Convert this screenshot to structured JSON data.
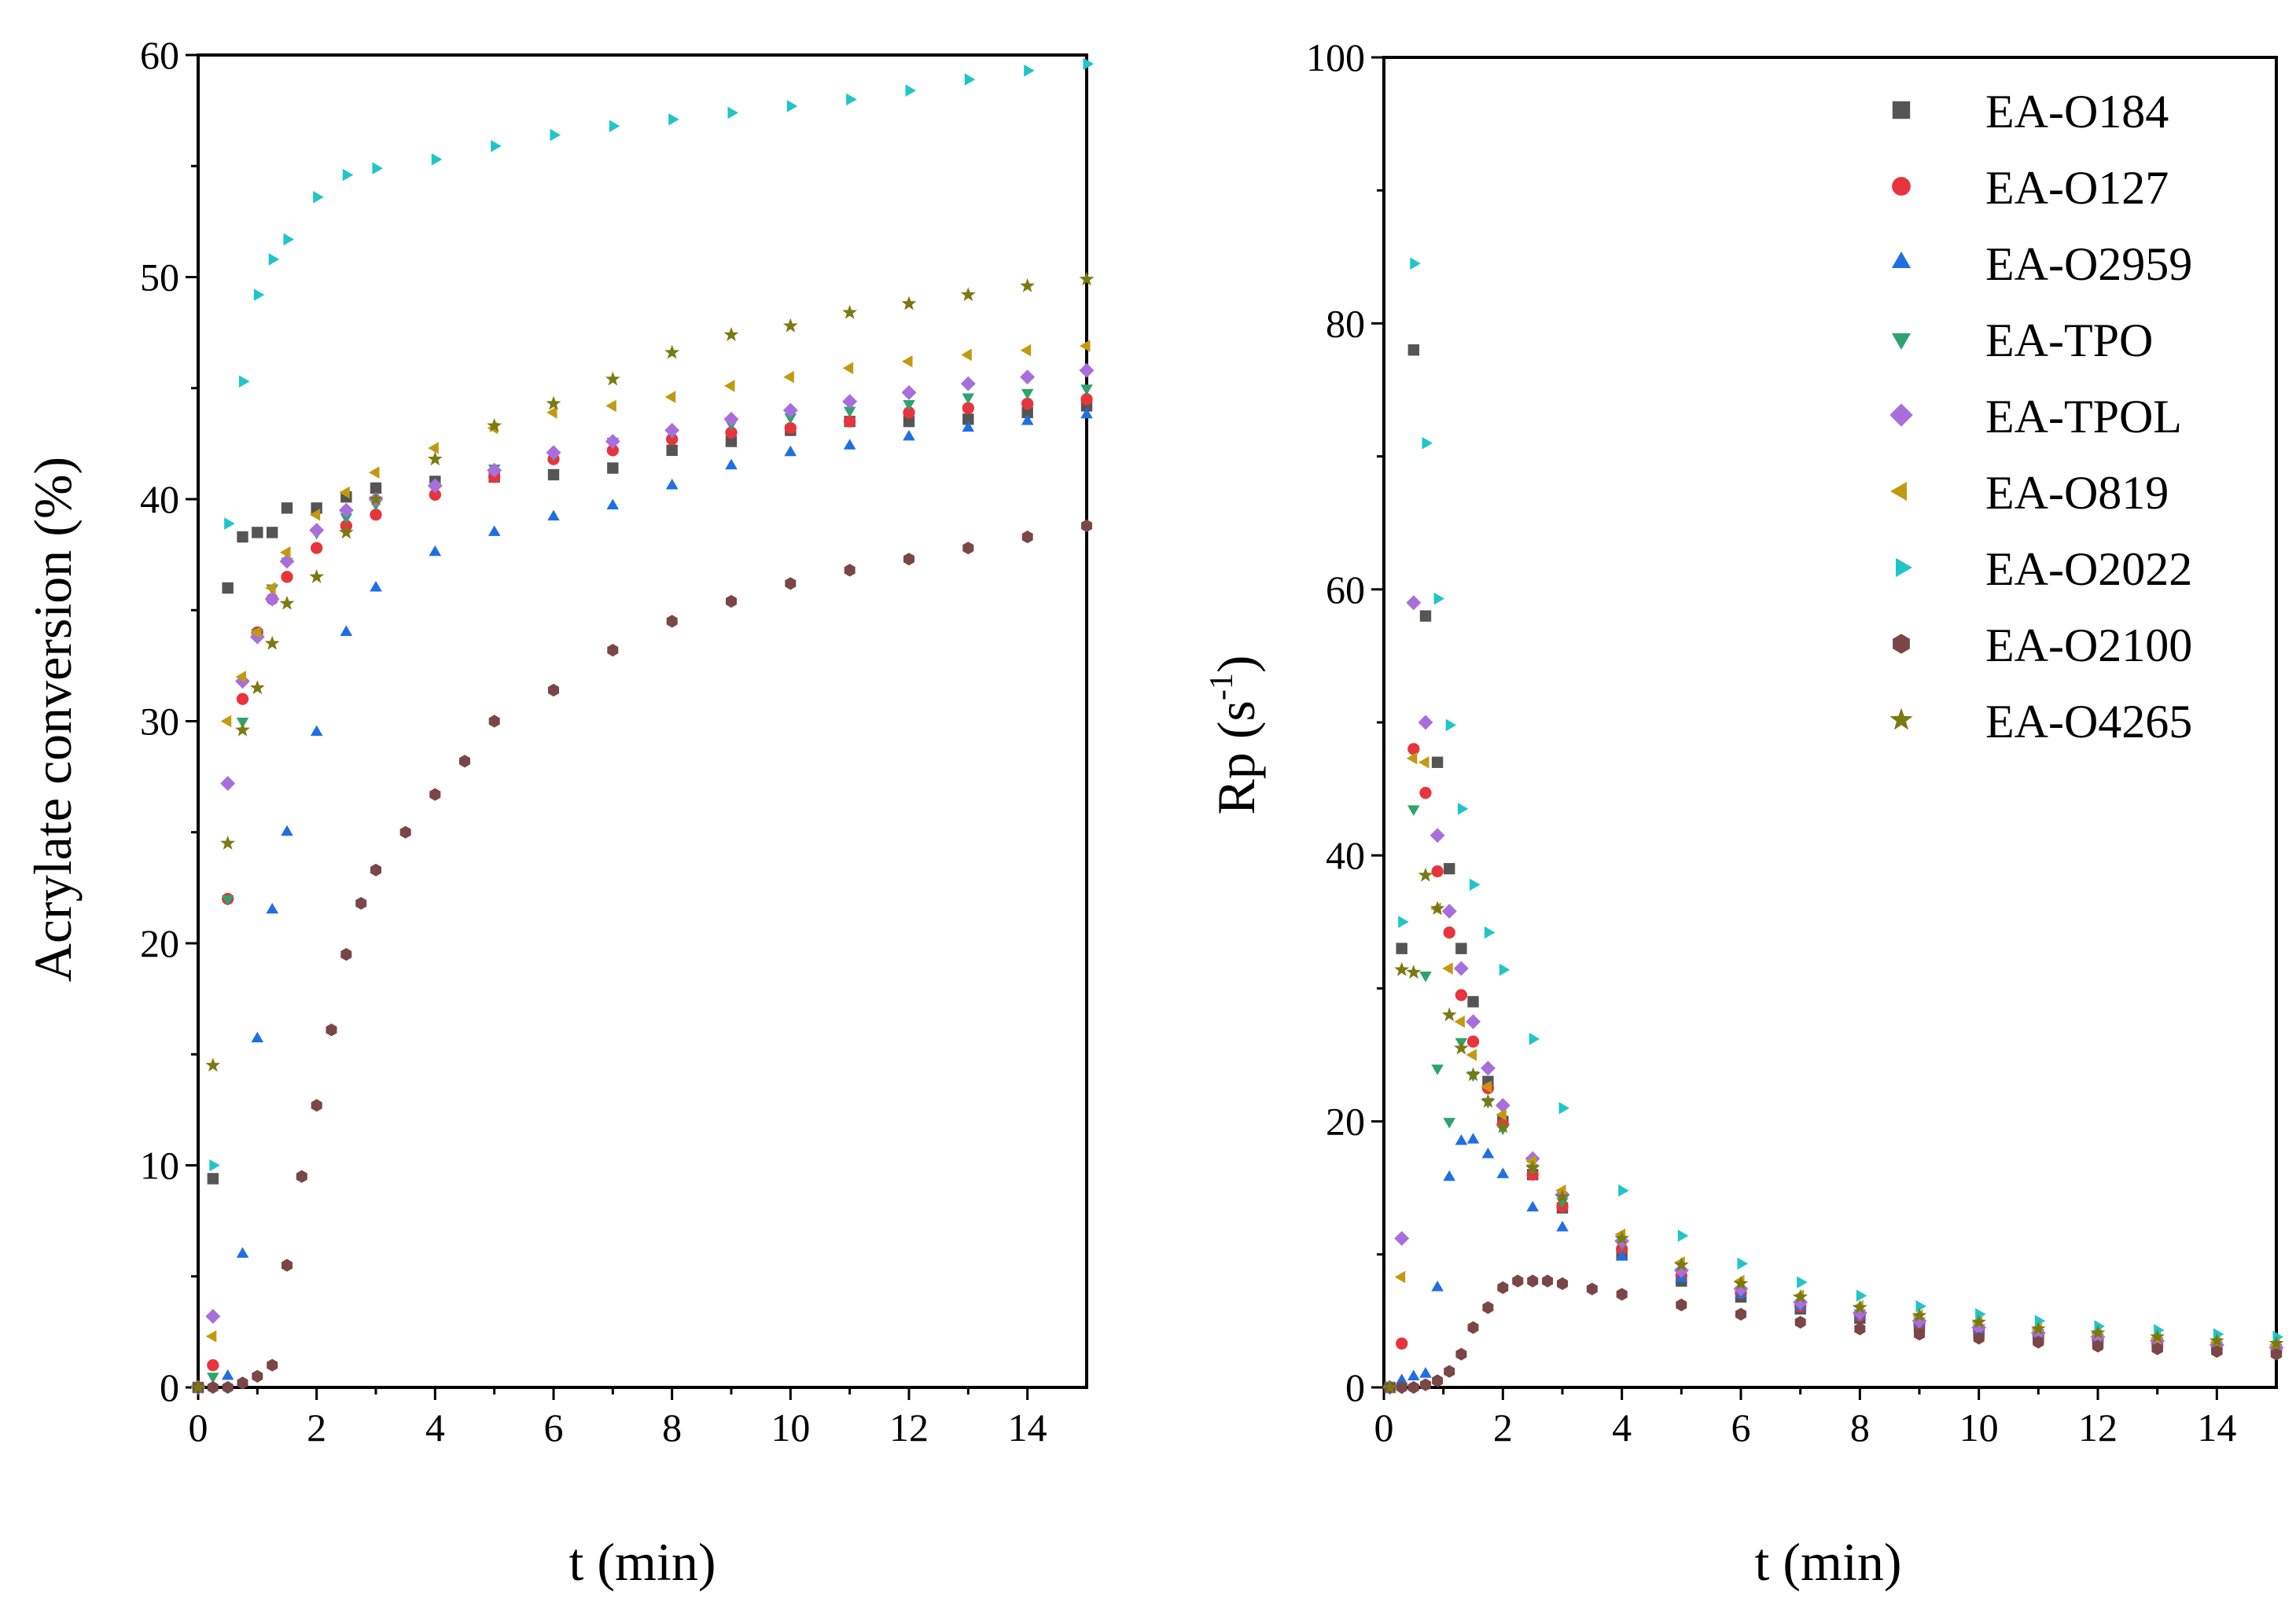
{
  "chart_data": [
    {
      "type": "scatter",
      "xlabel": "t (min)",
      "ylabel": "Acrylate conversion (%)",
      "xlim": [
        0,
        15
      ],
      "ylim": [
        0,
        60
      ],
      "x_ticks": [
        "0",
        "2",
        "4",
        "6",
        "8",
        "10",
        "12",
        "14"
      ],
      "y_ticks": [
        "0",
        "10",
        "20",
        "30",
        "40",
        "50",
        "60"
      ],
      "series": [
        {
          "color": "#555555",
          "marker": "square",
          "x": [
            0,
            0.25,
            0.5,
            0.75,
            1,
            1.25,
            1.5,
            2,
            2.5,
            3,
            4,
            5,
            6,
            7,
            8,
            9,
            10,
            11,
            12,
            13,
            14,
            15
          ],
          "y": [
            0,
            9.4,
            36,
            38.3,
            38.5,
            38.5,
            39.6,
            39.6,
            40.1,
            40.5,
            40.8,
            41,
            41.1,
            41.4,
            42.2,
            42.6,
            43.1,
            43.5,
            43.5,
            43.6,
            43.9,
            44.2
          ]
        },
        {
          "color": "#e8343c",
          "marker": "circle",
          "x": [
            0,
            0.25,
            0.5,
            0.75,
            1,
            1.25,
            1.5,
            2,
            2.5,
            3,
            4,
            5,
            6,
            7,
            8,
            9,
            10,
            11,
            12,
            13,
            14,
            15
          ],
          "y": [
            0,
            1,
            22,
            31,
            34,
            35.5,
            36.5,
            37.8,
            38.8,
            39.3,
            40.2,
            41,
            41.8,
            42.2,
            42.7,
            43,
            43.2,
            43.5,
            43.9,
            44.1,
            44.3,
            44.5
          ]
        },
        {
          "color": "#1f6fe0",
          "marker": "triangle-up",
          "x": [
            0,
            0.5,
            0.75,
            1,
            1.25,
            1.5,
            2,
            2.5,
            3,
            4,
            5,
            6,
            7,
            8,
            9,
            10,
            11,
            12,
            13,
            14,
            15
          ],
          "y": [
            0,
            0.5,
            6,
            15.7,
            21.5,
            25,
            29.5,
            34,
            36,
            37.6,
            38.5,
            39.2,
            39.7,
            40.6,
            41.5,
            42.1,
            42.4,
            42.8,
            43.2,
            43.5,
            43.8
          ]
        },
        {
          "color": "#2ea36e",
          "marker": "triangle-down",
          "x": [
            0,
            0.25,
            0.5,
            0.75,
            1,
            1.25,
            1.5,
            2,
            2.5,
            3,
            4,
            5,
            6,
            7,
            8,
            9,
            10,
            11,
            12,
            13,
            14,
            15
          ],
          "y": [
            0,
            0.5,
            22,
            30,
            34,
            36,
            37.2,
            38.5,
            39.2,
            39.8,
            40.6,
            41.4,
            42,
            42.6,
            43,
            43.4,
            43.7,
            44,
            44.3,
            44.6,
            44.8,
            45
          ]
        },
        {
          "color": "#a86fdc",
          "marker": "diamond",
          "x": [
            0,
            0.25,
            0.5,
            0.75,
            1,
            1.25,
            1.5,
            2,
            2.5,
            3,
            4,
            5,
            6,
            7,
            8,
            9,
            10,
            11,
            12,
            13,
            14,
            15
          ],
          "y": [
            0,
            3.2,
            27.2,
            31.8,
            33.8,
            35.5,
            37.2,
            38.6,
            39.5,
            40,
            40.6,
            41.3,
            42.1,
            42.6,
            43.1,
            43.6,
            44,
            44.4,
            44.8,
            45.2,
            45.5,
            45.8
          ]
        },
        {
          "color": "#c29a10",
          "marker": "triangle-left",
          "x": [
            0,
            0.25,
            0.5,
            0.75,
            1,
            1.25,
            1.5,
            2,
            2.5,
            3,
            4,
            5,
            6,
            7,
            8,
            9,
            10,
            11,
            12,
            13,
            14,
            15
          ],
          "y": [
            0,
            2.3,
            30,
            32,
            34,
            36,
            37.6,
            39.3,
            40.3,
            41.2,
            42.3,
            43.2,
            43.9,
            44.2,
            44.6,
            45.1,
            45.5,
            45.9,
            46.2,
            46.5,
            46.7,
            46.9
          ]
        },
        {
          "color": "#20c5c9",
          "marker": "triangle-right",
          "x": [
            0,
            0.25,
            0.5,
            0.75,
            1,
            1.25,
            1.5,
            2,
            2.5,
            3,
            4,
            5,
            6,
            7,
            8,
            9,
            10,
            11,
            12,
            13,
            14,
            15
          ],
          "y": [
            0,
            10,
            38.9,
            45.3,
            49.2,
            50.8,
            51.7,
            53.6,
            54.6,
            54.9,
            55.3,
            55.9,
            56.4,
            56.8,
            57.1,
            57.4,
            57.7,
            58,
            58.4,
            58.9,
            59.3,
            59.6
          ]
        },
        {
          "color": "#7a4646",
          "marker": "hexagon",
          "x": [
            0,
            0.25,
            0.5,
            0.75,
            1,
            1.25,
            1.5,
            1.75,
            2,
            2.25,
            2.5,
            2.75,
            3,
            3.5,
            4,
            4.5,
            5,
            6,
            7,
            8,
            9,
            10,
            11,
            12,
            13,
            14,
            15
          ],
          "y": [
            0,
            0,
            0,
            0.2,
            0.5,
            1,
            5.5,
            9.5,
            12.7,
            16.1,
            19.5,
            21.8,
            23.3,
            25,
            26.7,
            28.2,
            30,
            31.4,
            33.2,
            34.5,
            35.4,
            36.2,
            36.8,
            37.3,
            37.8,
            38.3,
            38.8
          ]
        },
        {
          "color": "#7a7a12",
          "marker": "star",
          "x": [
            0,
            0.25,
            0.5,
            0.75,
            1,
            1.25,
            1.5,
            2,
            2.5,
            3,
            4,
            5,
            6,
            7,
            8,
            9,
            10,
            11,
            12,
            13,
            14,
            15
          ],
          "y": [
            0,
            14.5,
            24.5,
            29.6,
            31.5,
            33.5,
            35.3,
            36.5,
            38.5,
            40,
            41.8,
            43.3,
            44.3,
            45.4,
            46.6,
            47.4,
            47.8,
            48.4,
            48.8,
            49.2,
            49.6,
            49.9
          ]
        }
      ]
    },
    {
      "type": "scatter",
      "xlabel": "t (min)",
      "ylabel": "Rp (s",
      "ylabel_sup": "-1",
      "ylabel_end": ")",
      "xlim": [
        0,
        15
      ],
      "ylim": [
        0,
        100
      ],
      "x_ticks": [
        "0",
        "2",
        "4",
        "6",
        "8",
        "10",
        "12",
        "14"
      ],
      "y_ticks": [
        "0",
        "20",
        "40",
        "60",
        "80",
        "100"
      ],
      "legend_position": "top-right",
      "series": [
        {
          "name": "EA-O184",
          "color": "#555555",
          "marker": "square",
          "x": [
            0.1,
            0.3,
            0.5,
            0.7,
            0.9,
            1.1,
            1.3,
            1.5,
            1.75,
            2,
            2.5,
            3,
            4,
            5,
            6,
            7,
            8,
            9,
            10,
            11,
            12,
            13,
            14,
            15
          ],
          "y": [
            0,
            33,
            78,
            58,
            47,
            39,
            33,
            29,
            23,
            20,
            16,
            13.5,
            10,
            8,
            6.8,
            5.9,
            5.2,
            4.6,
            4.1,
            3.7,
            3.4,
            3.1,
            2.9,
            2.7
          ]
        },
        {
          "name": "EA-O127",
          "color": "#e8343c",
          "marker": "circle",
          "x": [
            0.1,
            0.3,
            0.5,
            0.7,
            0.9,
            1.1,
            1.3,
            1.5,
            1.75,
            2,
            2.5,
            3,
            4,
            5,
            6,
            7,
            8,
            9,
            10,
            11,
            12,
            13,
            14,
            15
          ],
          "y": [
            0,
            3.3,
            48,
            44.7,
            38.8,
            34.2,
            29.5,
            26,
            22.5,
            19.8,
            16,
            13.6,
            10.4,
            8.4,
            7.1,
            6.1,
            5.4,
            4.8,
            4.3,
            3.9,
            3.6,
            3.3,
            3.1,
            2.9
          ]
        },
        {
          "name": "EA-O2959",
          "color": "#1f6fe0",
          "marker": "triangle-up",
          "x": [
            0.1,
            0.3,
            0.5,
            0.7,
            0.9,
            1.1,
            1.3,
            1.5,
            1.75,
            2,
            2.5,
            3,
            4,
            5,
            6,
            7,
            8,
            9,
            10,
            11,
            12,
            13,
            14,
            15
          ],
          "y": [
            0,
            0.5,
            0.8,
            1,
            7.5,
            15.8,
            18.5,
            18.6,
            17.5,
            16,
            13.5,
            12,
            9.8,
            8.2,
            7,
            6.1,
            5.4,
            4.8,
            4.3,
            3.9,
            3.6,
            3.3,
            3.1,
            2.9
          ]
        },
        {
          "name": "EA-TPO",
          "color": "#2ea36e",
          "marker": "triangle-down",
          "x": [
            0.1,
            0.3,
            0.5,
            0.7,
            0.9,
            1.1,
            1.3,
            1.5,
            1.75,
            2,
            2.5,
            3,
            4,
            5,
            6,
            7,
            8,
            9,
            10,
            11,
            12,
            13,
            14,
            15
          ],
          "y": [
            0,
            0,
            43.5,
            31,
            24,
            20,
            26,
            23.5,
            21.5,
            19.5,
            16.5,
            14,
            10.8,
            8.7,
            7.3,
            6.3,
            5.6,
            5,
            4.5,
            4.1,
            3.8,
            3.5,
            3.2,
            3
          ]
        },
        {
          "name": "EA-TPOL",
          "color": "#a86fdc",
          "marker": "diamond",
          "x": [
            0.1,
            0.3,
            0.5,
            0.7,
            0.9,
            1.1,
            1.3,
            1.5,
            1.75,
            2,
            2.5,
            3,
            4,
            5,
            6,
            7,
            8,
            9,
            10,
            11,
            12,
            13,
            14,
            15
          ],
          "y": [
            0,
            11.2,
            59,
            50,
            41.5,
            35.8,
            31.5,
            27.5,
            24,
            21.2,
            17.2,
            14.5,
            11,
            8.8,
            7.4,
            6.4,
            5.6,
            5,
            4.5,
            4.1,
            3.8,
            3.5,
            3.2,
            3
          ]
        },
        {
          "name": "EA-O819",
          "color": "#c29a10",
          "marker": "triangle-left",
          "x": [
            0.1,
            0.3,
            0.5,
            0.7,
            0.9,
            1.1,
            1.3,
            1.5,
            1.75,
            2,
            2.5,
            3,
            4,
            5,
            6,
            7,
            8,
            9,
            10,
            11,
            12,
            13,
            14,
            15
          ],
          "y": [
            0,
            8.3,
            47.3,
            47,
            36,
            31.5,
            27.5,
            25,
            22.6,
            20.5,
            17,
            14.8,
            11.5,
            9.4,
            8,
            6.9,
            6.1,
            5.4,
            4.9,
            4.4,
            4.1,
            3.7,
            3.4,
            3.2
          ]
        },
        {
          "name": "EA-O2022",
          "color": "#20c5c9",
          "marker": "triangle-right",
          "x": [
            0.1,
            0.3,
            0.5,
            0.7,
            0.9,
            1.1,
            1.3,
            1.5,
            1.75,
            2,
            2.5,
            3,
            4,
            5,
            6,
            7,
            8,
            9,
            10,
            11,
            12,
            13,
            14,
            15
          ],
          "y": [
            0,
            35,
            84.5,
            71,
            59.3,
            49.8,
            43.5,
            37.8,
            34.2,
            31.4,
            26.2,
            21,
            14.8,
            11.4,
            9.3,
            7.9,
            6.9,
            6.1,
            5.5,
            5,
            4.6,
            4.3,
            4,
            3.8
          ]
        },
        {
          "name": "EA-O2100",
          "color": "#7a4646",
          "marker": "hexagon",
          "x": [
            0.1,
            0.3,
            0.5,
            0.7,
            0.9,
            1.1,
            1.3,
            1.5,
            1.75,
            2,
            2.25,
            2.5,
            2.75,
            3,
            3.5,
            4,
            5,
            6,
            7,
            8,
            9,
            10,
            11,
            12,
            13,
            14,
            15
          ],
          "y": [
            0,
            0,
            0,
            0.2,
            0.5,
            1.2,
            2.5,
            4.5,
            6,
            7.5,
            8,
            8,
            8,
            7.8,
            7.4,
            7,
            6.2,
            5.5,
            4.9,
            4.4,
            4,
            3.7,
            3.4,
            3.1,
            2.9,
            2.7,
            2.5
          ]
        },
        {
          "name": "EA-O4265",
          "color": "#7a7a12",
          "marker": "star",
          "x": [
            0.1,
            0.3,
            0.5,
            0.7,
            0.9,
            1.1,
            1.3,
            1.5,
            1.75,
            2,
            2.5,
            3,
            4,
            5,
            6,
            7,
            8,
            9,
            10,
            11,
            12,
            13,
            14,
            15
          ],
          "y": [
            0,
            31.4,
            31.2,
            38.5,
            36,
            28,
            25.5,
            23.5,
            21.5,
            19.6,
            16.5,
            14.3,
            11.2,
            9.2,
            7.8,
            6.8,
            6,
            5.4,
            4.9,
            4.4,
            4.1,
            3.8,
            3.5,
            3.3
          ]
        }
      ]
    }
  ]
}
